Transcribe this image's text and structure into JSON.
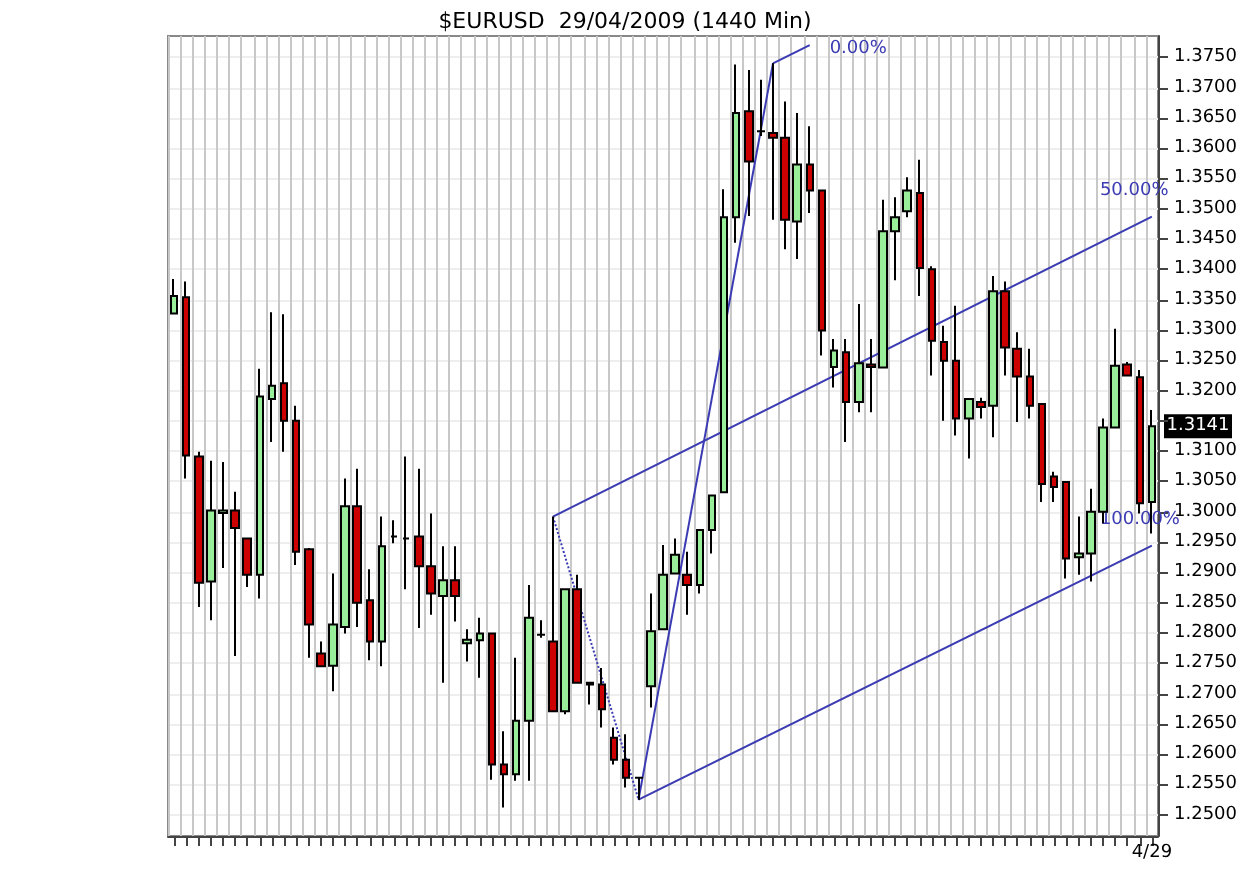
{
  "chart_data": {
    "type": "candlestick",
    "title": "$EURUSD  29/04/2009 (1440 Min)",
    "categories": [
      null,
      null,
      null,
      null,
      null,
      null,
      null,
      null,
      null,
      null,
      null,
      null,
      null,
      null,
      null,
      null,
      null,
      null,
      null,
      null,
      null,
      null,
      null,
      null,
      null,
      null,
      null,
      null,
      null,
      null,
      null,
      null,
      null,
      null,
      null,
      null,
      null,
      null,
      null,
      null,
      null,
      null,
      null,
      null,
      null,
      null,
      null,
      null,
      null,
      null,
      null,
      null,
      null,
      null,
      null,
      null,
      null,
      null,
      null,
      null,
      null,
      null,
      null,
      null,
      null,
      null,
      null,
      null,
      null,
      null,
      null,
      null,
      null,
      null,
      null,
      null,
      null,
      null,
      null,
      null,
      "4/29"
    ],
    "ohlc": [
      [
        1.3327,
        1.3384,
        1.3327,
        1.3356
      ],
      [
        1.3354,
        1.338,
        1.3055,
        1.3093
      ],
      [
        1.3091,
        1.3099,
        1.2843,
        1.2883
      ],
      [
        1.2885,
        1.3084,
        1.2821,
        1.3002
      ],
      [
        1.2998,
        1.3082,
        1.2907,
        1.3002
      ],
      [
        1.3002,
        1.3033,
        1.2762,
        1.2973
      ],
      [
        1.2956,
        1.2956,
        1.2876,
        1.2896
      ],
      [
        1.2896,
        1.3236,
        1.2857,
        1.319
      ],
      [
        1.3186,
        1.3329,
        1.3115,
        1.3208
      ],
      [
        1.3212,
        1.3326,
        1.3099,
        1.315
      ],
      [
        1.315,
        1.3175,
        1.2912,
        1.2934
      ],
      [
        1.2938,
        1.294,
        1.2759,
        1.2814
      ],
      [
        1.2766,
        1.2786,
        1.2745,
        1.2745
      ],
      [
        1.2746,
        1.2898,
        1.2704,
        1.2814
      ],
      [
        1.281,
        1.3055,
        1.2799,
        1.3009
      ],
      [
        1.3009,
        1.3071,
        1.281,
        1.285
      ],
      [
        1.2854,
        1.2905,
        1.2755,
        1.2786
      ],
      [
        1.2786,
        1.2992,
        1.2745,
        1.2943
      ],
      [
        1.2959,
        1.2986,
        1.2948,
        1.2959
      ],
      [
        1.2956,
        1.3091,
        1.2872,
        1.2956
      ],
      [
        1.2959,
        1.3071,
        1.2808,
        1.291
      ],
      [
        1.291,
        1.2997,
        1.283,
        1.2865
      ],
      [
        1.2861,
        1.2943,
        1.2718,
        1.2887
      ],
      [
        1.2887,
        1.2943,
        1.2819,
        1.2861
      ],
      [
        1.2783,
        1.2806,
        1.2753,
        1.2789
      ],
      [
        1.2788,
        1.2825,
        1.2726,
        1.2799
      ],
      [
        1.2799,
        1.2799,
        1.2558,
        1.2583
      ],
      [
        1.2583,
        1.2638,
        1.2512,
        1.2567
      ],
      [
        1.2567,
        1.2759,
        1.2556,
        1.2655
      ],
      [
        1.2655,
        1.2879,
        1.2556,
        1.2825
      ],
      [
        1.2797,
        1.2821,
        1.2792,
        1.2797
      ],
      [
        1.2786,
        1.2992,
        1.2671,
        1.2671
      ],
      [
        1.2671,
        1.2872,
        1.2666,
        1.2872
      ],
      [
        1.2872,
        1.2896,
        1.2718,
        1.2718
      ],
      [
        1.2718,
        1.2718,
        1.2682,
        1.2715
      ],
      [
        1.2715,
        1.2742,
        1.2644,
        1.2674
      ],
      [
        1.2627,
        1.2644,
        1.2583,
        1.2591
      ],
      [
        1.2591,
        1.2633,
        1.2545,
        1.2561
      ],
      [
        1.2561,
        1.2561,
        1.2525,
        1.2561
      ],
      [
        1.2712,
        1.2865,
        1.2677,
        1.2803
      ],
      [
        1.2806,
        1.2945,
        1.2806,
        1.2896
      ],
      [
        1.2898,
        1.2956,
        1.2898,
        1.2929
      ],
      [
        1.2896,
        1.2934,
        1.283,
        1.2879
      ],
      [
        1.2879,
        1.297,
        1.2865,
        1.297
      ],
      [
        1.297,
        1.3027,
        1.2931,
        1.3027
      ],
      [
        1.3032,
        1.3532,
        1.3032,
        1.3486
      ],
      [
        1.3486,
        1.3738,
        1.3444,
        1.3658
      ],
      [
        1.3661,
        1.3729,
        1.3488,
        1.3578
      ],
      [
        1.3628,
        1.3713,
        1.362,
        1.3628
      ],
      [
        1.3625,
        1.374,
        1.3482,
        1.3617
      ],
      [
        1.3617,
        1.3677,
        1.3433,
        1.3482
      ],
      [
        1.3479,
        1.3658,
        1.3417,
        1.3573
      ],
      [
        1.3573,
        1.3636,
        1.3493,
        1.353
      ],
      [
        1.353,
        1.353,
        1.3258,
        1.3299
      ],
      [
        1.3239,
        1.3285,
        1.3205,
        1.3266
      ],
      [
        1.3263,
        1.3285,
        1.3115,
        1.3181
      ],
      [
        1.3181,
        1.3343,
        1.3164,
        1.3245
      ],
      [
        1.3243,
        1.3285,
        1.3164,
        1.3239
      ],
      [
        1.3238,
        1.3515,
        1.3238,
        1.3463
      ],
      [
        1.3463,
        1.3519,
        1.3382,
        1.3486
      ],
      [
        1.3496,
        1.3552,
        1.3486,
        1.353
      ],
      [
        1.3526,
        1.3581,
        1.3356,
        1.3402
      ],
      [
        1.34,
        1.3405,
        1.3225,
        1.3282
      ],
      [
        1.328,
        1.3307,
        1.315,
        1.3249
      ],
      [
        1.3249,
        1.334,
        1.3126,
        1.3154
      ],
      [
        1.3154,
        1.3186,
        1.3088,
        1.3186
      ],
      [
        1.3181,
        1.3188,
        1.3154,
        1.3173
      ],
      [
        1.3175,
        1.3389,
        1.3123,
        1.3364
      ],
      [
        1.3364,
        1.338,
        1.3225,
        1.3271
      ],
      [
        1.3269,
        1.3296,
        1.3148,
        1.3223
      ],
      [
        1.3223,
        1.3269,
        1.3154,
        1.3175
      ],
      [
        1.3178,
        1.3178,
        1.3016,
        1.3046
      ],
      [
        1.3058,
        1.3066,
        1.3016,
        1.3041
      ],
      [
        1.3049,
        1.3049,
        1.289,
        1.2923
      ],
      [
        1.2925,
        1.2992,
        1.2896,
        1.2931
      ],
      [
        1.2931,
        1.3038,
        1.2885,
        1.3
      ],
      [
        1.3,
        1.3154,
        1.2981,
        1.3139
      ],
      [
        1.3139,
        1.3302,
        1.3139,
        1.3241
      ],
      [
        1.3243,
        1.3247,
        1.3225,
        1.3225
      ],
      [
        1.3222,
        1.3234,
        1.2997,
        1.3014
      ],
      [
        1.3016,
        1.3168,
        1.2964,
        1.3141
      ]
    ],
    "colors": [
      "#99ee99",
      "#cc0000",
      "#cc0000",
      "#99ee99",
      "#99ee99",
      "#cc0000",
      "#cc0000",
      "#99ee99",
      "#99ee99",
      "#cc0000",
      "#cc0000",
      "#cc0000",
      "#cc0000",
      "#99ee99",
      "#99ee99",
      "#cc0000",
      "#cc0000",
      "#99ee99",
      "#000000",
      "#000000",
      "#cc0000",
      "#cc0000",
      "#99ee99",
      "#cc0000",
      "#99ee99",
      "#99ee99",
      "#cc0000",
      "#cc0000",
      "#99ee99",
      "#99ee99",
      "#000000",
      "#cc0000",
      "#99ee99",
      "#cc0000",
      "#cc0000",
      "#cc0000",
      "#cc0000",
      "#cc0000",
      "#000000",
      "#99ee99",
      "#99ee99",
      "#99ee99",
      "#cc0000",
      "#99ee99",
      "#99ee99",
      "#99ee99",
      "#99ee99",
      "#cc0000",
      "#000000",
      "#cc0000",
      "#cc0000",
      "#99ee99",
      "#cc0000",
      "#cc0000",
      "#99ee99",
      "#cc0000",
      "#99ee99",
      "#cc0000",
      "#99ee99",
      "#99ee99",
      "#99ee99",
      "#cc0000",
      "#cc0000",
      "#cc0000",
      "#cc0000",
      "#99ee99",
      "#cc0000",
      "#99ee99",
      "#cc0000",
      "#cc0000",
      "#cc0000",
      "#cc0000",
      "#cc0000",
      "#cc0000",
      "#99ee99",
      "#99ee99",
      "#99ee99",
      "#99ee99",
      "#cc0000",
      "#cc0000",
      "#99ee99"
    ],
    "series": [
      {
        "type": "line",
        "color": "#3b3bb3",
        "line_style": "dotted",
        "values": [
          null,
          null,
          null,
          null,
          null,
          null,
          null,
          null,
          null,
          null,
          null,
          null,
          null,
          null,
          null,
          null,
          null,
          null,
          null,
          null,
          null,
          null,
          null,
          null,
          null,
          null,
          null,
          null,
          null,
          null,
          null,
          1.2992,
          null,
          null,
          null,
          null,
          null,
          null,
          1.2525,
          null,
          null,
          null,
          null,
          null,
          null,
          null,
          null,
          null,
          null,
          null,
          null,
          null,
          null,
          null,
          null,
          null,
          null,
          null,
          null,
          null,
          null,
          null,
          null,
          null,
          null,
          null,
          null,
          null,
          null,
          null,
          null,
          null,
          null,
          null,
          null,
          null,
          null,
          null,
          null,
          null,
          null
        ]
      },
      {
        "type": "line",
        "color": "#3b3bb3",
        "line_style": "solid",
        "values": [
          null,
          null,
          null,
          null,
          null,
          null,
          null,
          null,
          null,
          null,
          null,
          null,
          null,
          null,
          null,
          null,
          null,
          null,
          null,
          null,
          null,
          null,
          null,
          null,
          null,
          null,
          null,
          null,
          null,
          null,
          null,
          null,
          null,
          null,
          null,
          null,
          null,
          null,
          1.2525,
          null,
          null,
          null,
          null,
          null,
          null,
          null,
          null,
          null,
          null,
          1.374,
          null,
          null,
          null,
          null,
          null,
          null,
          null,
          null,
          null,
          null,
          null,
          null,
          null,
          null,
          null,
          null,
          null,
          null,
          null,
          null,
          null,
          null,
          null,
          null,
          null,
          null,
          null,
          null,
          null,
          null,
          null
        ]
      },
      {
        "type": "line",
        "name": "0.00%",
        "color": "#3b3bb3",
        "line_style": "solid",
        "values": [
          null,
          null,
          null,
          null,
          null,
          null,
          null,
          null,
          null,
          null,
          null,
          null,
          null,
          null,
          null,
          null,
          null,
          null,
          null,
          null,
          null,
          null,
          null,
          null,
          null,
          null,
          null,
          null,
          null,
          null,
          null,
          null,
          null,
          null,
          null,
          null,
          null,
          null,
          null,
          null,
          null,
          null,
          null,
          null,
          null,
          null,
          null,
          null,
          null,
          1.374,
          null,
          null,
          1.377,
          null,
          null,
          null,
          null,
          null,
          null,
          null,
          null,
          null,
          null,
          null,
          null,
          null,
          null,
          null,
          null,
          null,
          null,
          null,
          null,
          null,
          null,
          null,
          null,
          null,
          null,
          null,
          null
        ]
      },
      {
        "type": "line",
        "name": "50.00%",
        "color": "#3b3bb3",
        "line_style": "solid",
        "values": [
          null,
          null,
          null,
          null,
          null,
          null,
          null,
          null,
          null,
          null,
          null,
          null,
          null,
          null,
          null,
          null,
          null,
          null,
          null,
          null,
          null,
          null,
          null,
          null,
          null,
          null,
          null,
          null,
          null,
          null,
          null,
          1.2992,
          null,
          null,
          null,
          null,
          null,
          null,
          null,
          null,
          null,
          null,
          null,
          null,
          null,
          null,
          null,
          null,
          null,
          null,
          null,
          null,
          null,
          null,
          null,
          null,
          null,
          null,
          null,
          null,
          null,
          null,
          null,
          null,
          null,
          null,
          null,
          null,
          null,
          null,
          null,
          null,
          null,
          null,
          null,
          null,
          null,
          null,
          null,
          null,
          1.3487
        ]
      },
      {
        "type": "line",
        "name": "100.00%",
        "color": "#3b3bb3",
        "line_style": "solid",
        "values": [
          null,
          null,
          null,
          null,
          null,
          null,
          null,
          null,
          null,
          null,
          null,
          null,
          null,
          null,
          null,
          null,
          null,
          null,
          null,
          null,
          null,
          null,
          null,
          null,
          null,
          null,
          null,
          null,
          null,
          null,
          null,
          null,
          null,
          null,
          null,
          null,
          null,
          null,
          1.2525,
          null,
          null,
          null,
          null,
          null,
          null,
          null,
          null,
          null,
          null,
          null,
          null,
          null,
          null,
          null,
          null,
          null,
          null,
          null,
          null,
          null,
          null,
          null,
          null,
          null,
          null,
          null,
          null,
          null,
          null,
          null,
          null,
          null,
          null,
          null,
          null,
          null,
          null,
          null,
          null,
          null,
          1.2944
        ]
      }
    ],
    "annotations": [
      {
        "text": "1.3141",
        "y": 1.3141
      }
    ],
    "ylim": [
      1.2465,
      1.3785
    ],
    "yticks": [
      {
        "value": 1.25,
        "label": "1.2500"
      },
      {
        "value": 1.255,
        "label": "1.2550"
      },
      {
        "value": 1.26,
        "label": "1.2600"
      },
      {
        "value": 1.265,
        "label": "1.2650"
      },
      {
        "value": 1.27,
        "label": "1.2700"
      },
      {
        "value": 1.275,
        "label": "1.2750"
      },
      {
        "value": 1.28,
        "label": "1.2800"
      },
      {
        "value": 1.285,
        "label": "1.2850"
      },
      {
        "value": 1.29,
        "label": "1.2900"
      },
      {
        "value": 1.295,
        "label": "1.2950"
      },
      {
        "value": 1.3,
        "label": "1.3000"
      },
      {
        "value": 1.305,
        "label": "1.3050"
      },
      {
        "value": 1.31,
        "label": "1.3100"
      },
      {
        "value": 1.315,
        "label": null
      },
      {
        "value": 1.32,
        "label": "1.3200"
      },
      {
        "value": 1.325,
        "label": "1.3250"
      },
      {
        "value": 1.33,
        "label": "1.3300"
      },
      {
        "value": 1.335,
        "label": "1.3350"
      },
      {
        "value": 1.34,
        "label": "1.3400"
      },
      {
        "value": 1.345,
        "label": "1.3450"
      },
      {
        "value": 1.35,
        "label": "1.3500"
      },
      {
        "value": 1.355,
        "label": "1.3550"
      },
      {
        "value": 1.36,
        "label": "1.3600"
      },
      {
        "value": 1.365,
        "label": "1.3650"
      },
      {
        "value": 1.37,
        "label": "1.3700"
      },
      {
        "value": 1.375,
        "label": "1.3750"
      }
    ],
    "grid": true,
    "legend": false,
    "marker": "none"
  }
}
